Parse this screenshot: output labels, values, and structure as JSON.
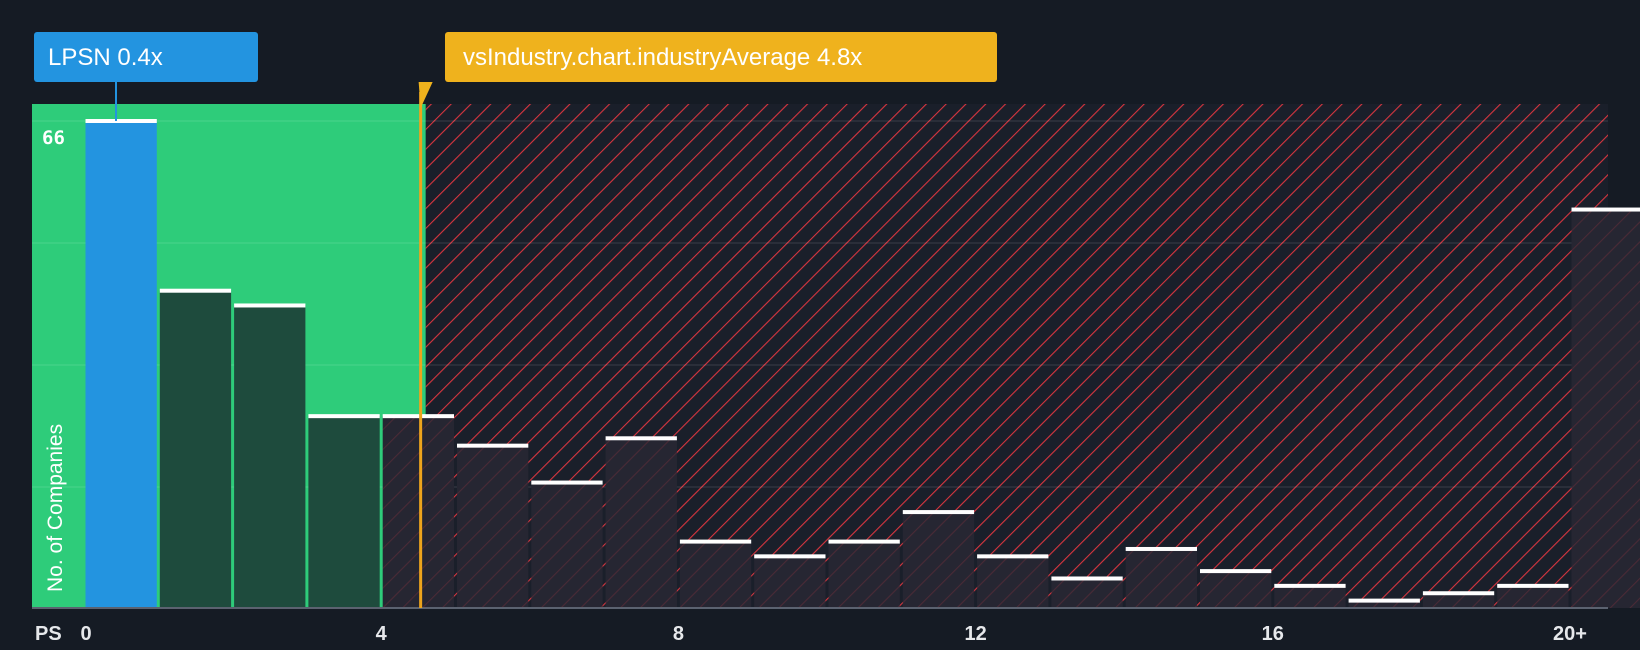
{
  "chart_data": {
    "type": "bar",
    "title": "",
    "xlabel": "PS",
    "ylabel": "No. of Companies",
    "x_ticks": [
      "0",
      "4",
      "8",
      "12",
      "16",
      "20+"
    ],
    "x_tick_values": [
      0,
      4,
      8,
      12,
      16,
      20
    ],
    "y_max_label": "66",
    "ylim": [
      0,
      70
    ],
    "bin_width": 1,
    "bins_start": [
      0,
      1,
      2,
      3,
      4,
      5,
      6,
      7,
      8,
      9,
      10,
      11,
      12,
      13,
      14,
      15,
      16,
      17,
      18,
      19,
      20
    ],
    "values": [
      66,
      43,
      41,
      26,
      26,
      22,
      17,
      23,
      9,
      7,
      9,
      13,
      7,
      4,
      8,
      5,
      3,
      1,
      2,
      3,
      54
    ],
    "company": {
      "ticker": "LPSN",
      "value": 0.4,
      "label": "LPSN 0.4x"
    },
    "industry_average": {
      "value": 4.8,
      "label": "vsIndustry.chart.industryAverage 4.8x"
    },
    "fair_range": [
      0,
      4.6
    ],
    "colors": {
      "background": "#151b24",
      "fair_zone": "#2ecc7a",
      "company_bar": "#2394e0",
      "fair_bar": "#1e4b3d",
      "over_hatch": "#d7353f",
      "industry_line": "#eda41c",
      "industry_callout": "#efb21d",
      "company_callout": "#2394e0",
      "cap": "#ffffff"
    }
  }
}
